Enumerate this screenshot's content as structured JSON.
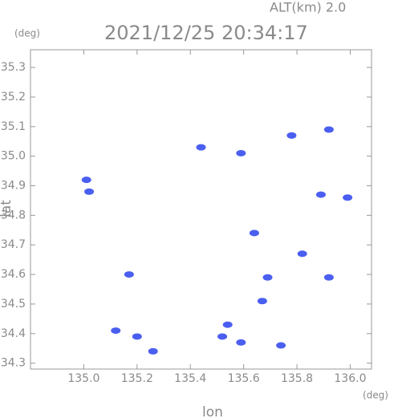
{
  "chart_data": {
    "type": "scatter",
    "title": "2021/12/25 20:34:17",
    "subtitle": "ALT(km)  2.0",
    "x_label": "lon",
    "y_label": "lat",
    "x_unit": "(deg)",
    "y_unit": "(deg)",
    "xlim": [
      134.8,
      136.08
    ],
    "ylim": [
      34.28,
      35.36
    ],
    "xticks": [
      {
        "value": 135,
        "label": "135.0"
      },
      135.2,
      135.4,
      135.6,
      135.8,
      {
        "value": 136,
        "label": "136.0"
      }
    ],
    "yticks": [
      34.3,
      34.4,
      34.5,
      34.6,
      34.7,
      34.8,
      34.9,
      {
        "value": 35,
        "label": "35.0"
      },
      35.1,
      35.2,
      35.3
    ],
    "series": [
      {
        "color": "#4a5ff0",
        "x": [
          135.01,
          135.02,
          135.17,
          135.12,
          135.2,
          135.26,
          135.44,
          135.59,
          135.78,
          135.92,
          135.89,
          135.99,
          135.82,
          135.69,
          135.67,
          135.54,
          135.52,
          135.59,
          135.74,
          135.92,
          135.64
        ],
        "values": [
          34.92,
          34.88,
          34.6,
          34.41,
          34.39,
          34.34,
          35.03,
          35.01,
          35.07,
          35.09,
          34.87,
          34.86,
          34.67,
          34.59,
          34.51,
          34.43,
          34.39,
          34.37,
          34.36,
          34.59,
          34.74
        ]
      }
    ]
  }
}
